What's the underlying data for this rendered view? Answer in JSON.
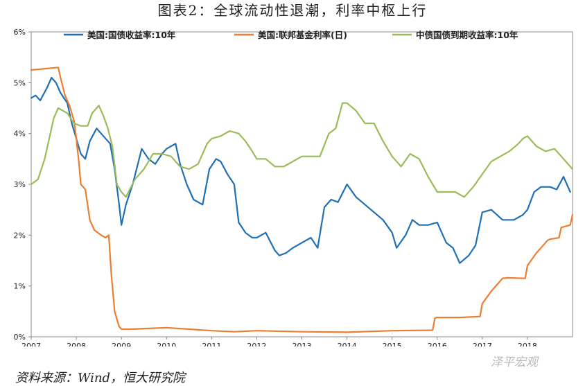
{
  "title": "图表2：全球流动性退潮，利率中枢上行",
  "source": "资料来源：Wind，恒大研究院",
  "watermark": "泽平宏观",
  "chart_data": {
    "type": "line",
    "ylim": [
      0,
      6
    ],
    "yticks": [
      "0%",
      "1%",
      "2%",
      "3%",
      "4%",
      "5%",
      "6%"
    ],
    "xlim": [
      2007.0,
      2019.0
    ],
    "xticks": [
      "2007",
      "2008",
      "2009",
      "2010",
      "2011",
      "2012",
      "2013",
      "2014",
      "2015",
      "2016",
      "2017",
      "2018"
    ],
    "legend_position": "top",
    "series": [
      {
        "name": "美国:国债收益率:10年",
        "color": "#1f6fb5",
        "x": [
          2007.0,
          2007.1,
          2007.2,
          2007.35,
          2007.45,
          2007.55,
          2007.65,
          2007.8,
          2007.9,
          2008.0,
          2008.1,
          2008.2,
          2008.3,
          2008.45,
          2008.6,
          2008.75,
          2008.85,
          2008.95,
          2009.0,
          2009.1,
          2009.25,
          2009.45,
          2009.6,
          2009.75,
          2009.9,
          2010.0,
          2010.2,
          2010.3,
          2010.45,
          2010.6,
          2010.8,
          2010.95,
          2011.1,
          2011.2,
          2011.35,
          2011.5,
          2011.6,
          2011.75,
          2011.9,
          2012.0,
          2012.2,
          2012.4,
          2012.5,
          2012.65,
          2012.8,
          2013.0,
          2013.2,
          2013.35,
          2013.5,
          2013.65,
          2013.8,
          2014.0,
          2014.2,
          2014.4,
          2014.6,
          2014.8,
          2015.0,
          2015.1,
          2015.3,
          2015.45,
          2015.6,
          2015.8,
          2016.0,
          2016.2,
          2016.35,
          2016.5,
          2016.7,
          2016.85,
          2017.0,
          2017.2,
          2017.45,
          2017.7,
          2017.9,
          2018.0,
          2018.15,
          2018.3,
          2018.5,
          2018.65,
          2018.8,
          2018.95
        ],
        "y": [
          4.7,
          4.75,
          4.65,
          4.9,
          5.1,
          5.0,
          4.8,
          4.6,
          4.2,
          3.9,
          3.6,
          3.5,
          3.85,
          4.1,
          3.95,
          3.8,
          3.3,
          2.6,
          2.2,
          2.6,
          3.0,
          3.7,
          3.5,
          3.4,
          3.6,
          3.7,
          3.8,
          3.4,
          3.0,
          2.7,
          2.6,
          3.3,
          3.5,
          3.45,
          3.2,
          3.0,
          2.25,
          2.05,
          1.95,
          1.95,
          2.05,
          1.7,
          1.6,
          1.65,
          1.75,
          1.85,
          1.95,
          1.75,
          2.55,
          2.7,
          2.65,
          3.0,
          2.75,
          2.6,
          2.45,
          2.3,
          2.05,
          1.75,
          2.0,
          2.3,
          2.2,
          2.2,
          2.25,
          1.85,
          1.75,
          1.45,
          1.6,
          1.8,
          2.45,
          2.5,
          2.3,
          2.3,
          2.4,
          2.5,
          2.85,
          2.95,
          2.95,
          2.9,
          3.15,
          2.85
        ]
      },
      {
        "name": "美国:联邦基金利率(日)",
        "color": "#ed7d31",
        "x": [
          2007.0,
          2007.6,
          2007.65,
          2007.75,
          2007.85,
          2007.95,
          2008.0,
          2008.05,
          2008.1,
          2008.2,
          2008.3,
          2008.4,
          2008.55,
          2008.65,
          2008.72,
          2008.78,
          2008.85,
          2008.95,
          2009.0,
          2009.2,
          2010.0,
          2011.0,
          2011.5,
          2012.0,
          2013.0,
          2014.0,
          2015.0,
          2015.9,
          2015.95,
          2016.0,
          2016.5,
          2016.95,
          2017.0,
          2017.2,
          2017.45,
          2017.55,
          2017.95,
          2018.0,
          2018.2,
          2018.25,
          2018.45,
          2018.5,
          2018.7,
          2018.75,
          2018.95,
          2019.0
        ],
        "y": [
          5.25,
          5.3,
          5.1,
          4.75,
          4.55,
          4.25,
          3.9,
          3.5,
          3.0,
          2.9,
          2.3,
          2.1,
          2.0,
          1.95,
          2.0,
          1.2,
          0.5,
          0.2,
          0.15,
          0.15,
          0.18,
          0.12,
          0.1,
          0.12,
          0.1,
          0.09,
          0.12,
          0.13,
          0.37,
          0.38,
          0.38,
          0.4,
          0.65,
          0.9,
          1.15,
          1.16,
          1.15,
          1.4,
          1.65,
          1.7,
          1.9,
          1.92,
          1.95,
          2.15,
          2.2,
          2.4
        ]
      },
      {
        "name": "中债国债到期收益率:10年",
        "color": "#9bbb59",
        "x": [
          2007.0,
          2007.15,
          2007.3,
          2007.5,
          2007.6,
          2007.8,
          2007.95,
          2008.1,
          2008.25,
          2008.35,
          2008.5,
          2008.6,
          2008.7,
          2008.8,
          2008.9,
          2009.0,
          2009.1,
          2009.3,
          2009.5,
          2009.7,
          2009.9,
          2010.1,
          2010.3,
          2010.5,
          2010.7,
          2010.9,
          2011.0,
          2011.2,
          2011.4,
          2011.6,
          2011.75,
          2011.9,
          2012.0,
          2012.2,
          2012.4,
          2012.6,
          2012.8,
          2013.0,
          2013.2,
          2013.4,
          2013.6,
          2013.75,
          2013.9,
          2014.0,
          2014.2,
          2014.4,
          2014.6,
          2014.8,
          2015.0,
          2015.2,
          2015.4,
          2015.6,
          2015.8,
          2016.0,
          2016.2,
          2016.4,
          2016.6,
          2016.8,
          2017.0,
          2017.2,
          2017.4,
          2017.6,
          2017.8,
          2017.9,
          2018.0,
          2018.2,
          2018.4,
          2018.6,
          2018.8,
          2019.0
        ],
        "y": [
          3.0,
          3.1,
          3.5,
          4.3,
          4.5,
          4.4,
          4.2,
          4.15,
          4.15,
          4.4,
          4.55,
          4.35,
          4.1,
          3.75,
          3.0,
          2.85,
          2.75,
          3.1,
          3.3,
          3.6,
          3.6,
          3.55,
          3.35,
          3.3,
          3.4,
          3.8,
          3.9,
          3.95,
          4.05,
          4.0,
          3.85,
          3.65,
          3.5,
          3.5,
          3.35,
          3.35,
          3.45,
          3.55,
          3.55,
          3.55,
          4.0,
          4.1,
          4.6,
          4.6,
          4.45,
          4.2,
          4.2,
          3.85,
          3.55,
          3.35,
          3.6,
          3.5,
          3.15,
          2.85,
          2.85,
          2.85,
          2.75,
          2.95,
          3.2,
          3.45,
          3.55,
          3.65,
          3.8,
          3.9,
          3.95,
          3.75,
          3.65,
          3.7,
          3.5,
          3.3
        ]
      }
    ]
  }
}
